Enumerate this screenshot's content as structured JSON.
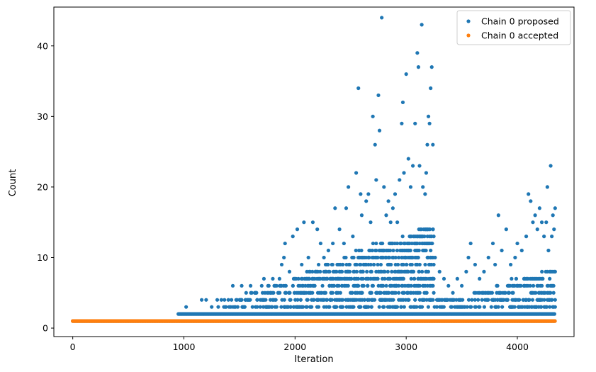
{
  "chart_data": {
    "type": "scatter",
    "xlabel": "Iteration",
    "ylabel": "Count",
    "xlim": [
      -170,
      4510
    ],
    "ylim": [
      -1.2,
      45.5
    ],
    "x_ticks": [
      0,
      1000,
      2000,
      3000,
      4000
    ],
    "y_ticks": [
      0,
      10,
      20,
      30,
      40
    ],
    "x_tick_labels": [
      "0",
      "1000",
      "2000",
      "3000",
      "4000"
    ],
    "y_tick_labels": [
      "0",
      "10",
      "20",
      "30",
      "40"
    ],
    "grid": false,
    "legend_position": "top-right",
    "series": [
      {
        "name": "Chain 0 proposed",
        "color": "#1f77b4",
        "description": "dense baseline at count 1 and 2 from ~950 to 4340; sparse high counts",
        "baseline": [
          {
            "y": 1,
            "x_start": 0,
            "x_end": 4340
          },
          {
            "y": 2,
            "x_start": 950,
            "x_end": 4340
          }
        ],
        "points": [
          [
            1020,
            3
          ],
          [
            1160,
            4
          ],
          [
            1200,
            4
          ],
          [
            1250,
            3
          ],
          [
            1300,
            4
          ],
          [
            1360,
            3
          ],
          [
            1400,
            4
          ],
          [
            1440,
            6
          ],
          [
            1500,
            4
          ],
          [
            1520,
            6
          ],
          [
            1560,
            5
          ],
          [
            1600,
            6
          ],
          [
            1640,
            5
          ],
          [
            1660,
            4
          ],
          [
            1700,
            6
          ],
          [
            1720,
            7
          ],
          [
            1760,
            5
          ],
          [
            1800,
            7
          ],
          [
            1820,
            6
          ],
          [
            1860,
            7
          ],
          [
            1880,
            9
          ],
          [
            1900,
            10
          ],
          [
            1910,
            12
          ],
          [
            1950,
            8
          ],
          [
            1980,
            13
          ],
          [
            2000,
            7
          ],
          [
            2020,
            14
          ],
          [
            2060,
            9
          ],
          [
            2080,
            15
          ],
          [
            2120,
            10
          ],
          [
            2160,
            15
          ],
          [
            2200,
            14
          ],
          [
            2230,
            12
          ],
          [
            2260,
            10
          ],
          [
            2300,
            11
          ],
          [
            2340,
            12
          ],
          [
            2360,
            17
          ],
          [
            2400,
            14
          ],
          [
            2440,
            12
          ],
          [
            2460,
            17
          ],
          [
            2480,
            20
          ],
          [
            2520,
            13
          ],
          [
            2550,
            22
          ],
          [
            2570,
            34
          ],
          [
            2590,
            19
          ],
          [
            2600,
            16
          ],
          [
            2640,
            18
          ],
          [
            2660,
            19
          ],
          [
            2680,
            15
          ],
          [
            2700,
            30
          ],
          [
            2720,
            26
          ],
          [
            2730,
            21
          ],
          [
            2750,
            33
          ],
          [
            2760,
            28
          ],
          [
            2780,
            44
          ],
          [
            2800,
            20
          ],
          [
            2820,
            16
          ],
          [
            2840,
            18
          ],
          [
            2860,
            15
          ],
          [
            2880,
            17
          ],
          [
            2900,
            19
          ],
          [
            2920,
            15
          ],
          [
            2940,
            21
          ],
          [
            2960,
            29
          ],
          [
            2970,
            32
          ],
          [
            2980,
            22
          ],
          [
            3000,
            36
          ],
          [
            3020,
            24
          ],
          [
            3040,
            20
          ],
          [
            3060,
            23
          ],
          [
            3080,
            29
          ],
          [
            3100,
            39
          ],
          [
            3110,
            37
          ],
          [
            3120,
            23
          ],
          [
            3140,
            43
          ],
          [
            3150,
            20
          ],
          [
            3170,
            19
          ],
          [
            3180,
            22
          ],
          [
            3190,
            26
          ],
          [
            3200,
            30
          ],
          [
            3210,
            29
          ],
          [
            3220,
            34
          ],
          [
            3230,
            37
          ],
          [
            3240,
            26
          ],
          [
            3260,
            10
          ],
          [
            3300,
            8
          ],
          [
            3340,
            7
          ],
          [
            3380,
            6
          ],
          [
            3420,
            5
          ],
          [
            3460,
            7
          ],
          [
            3500,
            6
          ],
          [
            3540,
            8
          ],
          [
            3560,
            10
          ],
          [
            3580,
            12
          ],
          [
            3620,
            9
          ],
          [
            3660,
            7
          ],
          [
            3700,
            8
          ],
          [
            3740,
            10
          ],
          [
            3780,
            12
          ],
          [
            3800,
            9
          ],
          [
            3830,
            16
          ],
          [
            3860,
            11
          ],
          [
            3900,
            14
          ],
          [
            3940,
            9
          ],
          [
            3980,
            10
          ],
          [
            4000,
            12
          ],
          [
            4040,
            11
          ],
          [
            4080,
            13
          ],
          [
            4100,
            19
          ],
          [
            4120,
            18
          ],
          [
            4140,
            15
          ],
          [
            4160,
            16
          ],
          [
            4180,
            14
          ],
          [
            4200,
            17
          ],
          [
            4220,
            15
          ],
          [
            4240,
            13
          ],
          [
            4260,
            15
          ],
          [
            4270,
            20
          ],
          [
            4280,
            11
          ],
          [
            4300,
            23
          ],
          [
            4310,
            13
          ],
          [
            4320,
            16
          ],
          [
            4330,
            14
          ],
          [
            4340,
            17
          ]
        ]
      },
      {
        "name": "Chain 0 accepted",
        "color": "#ff7f0e",
        "description": "constant count 1 for all iterations",
        "baseline": [
          {
            "y": 1,
            "x_start": 0,
            "x_end": 4340
          }
        ],
        "points": []
      }
    ]
  }
}
